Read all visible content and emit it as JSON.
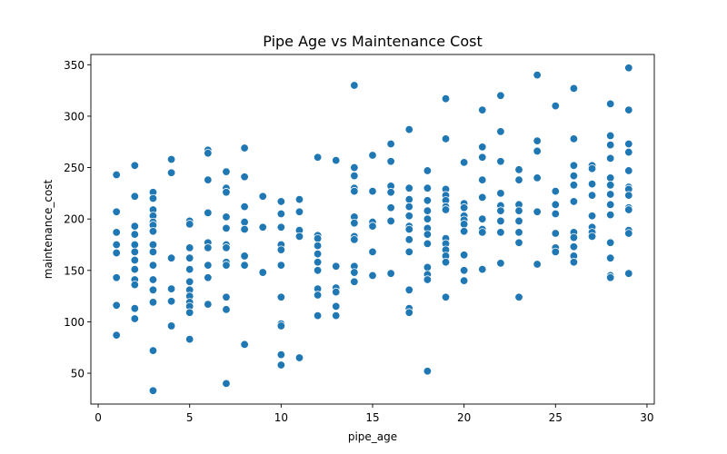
{
  "chart_data": {
    "type": "scatter",
    "title": "Pipe Age vs Maintenance Cost",
    "xlabel": "pipe_age",
    "ylabel": "maintenance_cost",
    "xlim": [
      -0.4,
      30.4
    ],
    "ylim": [
      20,
      360
    ],
    "x_ticks": [
      0,
      5,
      10,
      15,
      20,
      25,
      30
    ],
    "y_ticks": [
      50,
      100,
      150,
      200,
      250,
      300,
      350
    ],
    "grid": false,
    "legend": "none",
    "colors": {
      "point": "#1f77b4",
      "point_edge": "#ffffff"
    },
    "points": [
      [
        1,
        243
      ],
      [
        1,
        207
      ],
      [
        1,
        187
      ],
      [
        1,
        175
      ],
      [
        1,
        167
      ],
      [
        1,
        143
      ],
      [
        1,
        116
      ],
      [
        1,
        87
      ],
      [
        2,
        252
      ],
      [
        2,
        222
      ],
      [
        2,
        193
      ],
      [
        2,
        185
      ],
      [
        2,
        175
      ],
      [
        2,
        168
      ],
      [
        2,
        160
      ],
      [
        2,
        151
      ],
      [
        2,
        141
      ],
      [
        2,
        136
      ],
      [
        2,
        113
      ],
      [
        2,
        103
      ],
      [
        3,
        226
      ],
      [
        3,
        220
      ],
      [
        3,
        209
      ],
      [
        3,
        203
      ],
      [
        3,
        197
      ],
      [
        3,
        194
      ],
      [
        3,
        188
      ],
      [
        3,
        175
      ],
      [
        3,
        168
      ],
      [
        3,
        155
      ],
      [
        3,
        141
      ],
      [
        3,
        131
      ],
      [
        3,
        119
      ],
      [
        3,
        72
      ],
      [
        3,
        33
      ],
      [
        4,
        258
      ],
      [
        4,
        245
      ],
      [
        4,
        162
      ],
      [
        4,
        132
      ],
      [
        4,
        120
      ],
      [
        4,
        96
      ],
      [
        5,
        198
      ],
      [
        5,
        195
      ],
      [
        5,
        172
      ],
      [
        5,
        162
      ],
      [
        5,
        151
      ],
      [
        5,
        139
      ],
      [
        5,
        131
      ],
      [
        5,
        125
      ],
      [
        5,
        119
      ],
      [
        5,
        115
      ],
      [
        5,
        109
      ],
      [
        5,
        83
      ],
      [
        6,
        267
      ],
      [
        6,
        264
      ],
      [
        6,
        238
      ],
      [
        6,
        206
      ],
      [
        6,
        177
      ],
      [
        6,
        172
      ],
      [
        6,
        155
      ],
      [
        6,
        143
      ],
      [
        6,
        117
      ],
      [
        7,
        246
      ],
      [
        7,
        230
      ],
      [
        7,
        226
      ],
      [
        7,
        202
      ],
      [
        7,
        191
      ],
      [
        7,
        175
      ],
      [
        7,
        172
      ],
      [
        7,
        158
      ],
      [
        7,
        155
      ],
      [
        7,
        124
      ],
      [
        7,
        112
      ],
      [
        7,
        40
      ],
      [
        8,
        269
      ],
      [
        8,
        241
      ],
      [
        8,
        212
      ],
      [
        8,
        197
      ],
      [
        8,
        190
      ],
      [
        8,
        164
      ],
      [
        8,
        155
      ],
      [
        8,
        78
      ],
      [
        9,
        222
      ],
      [
        9,
        192
      ],
      [
        9,
        148
      ],
      [
        10,
        217
      ],
      [
        10,
        205
      ],
      [
        10,
        192
      ],
      [
        10,
        175
      ],
      [
        10,
        170
      ],
      [
        10,
        155
      ],
      [
        10,
        124
      ],
      [
        10,
        98
      ],
      [
        10,
        96
      ],
      [
        10,
        68
      ],
      [
        10,
        58
      ],
      [
        11,
        219
      ],
      [
        11,
        207
      ],
      [
        11,
        189
      ],
      [
        11,
        183
      ],
      [
        11,
        65
      ],
      [
        12,
        260
      ],
      [
        12,
        184
      ],
      [
        12,
        181
      ],
      [
        12,
        174
      ],
      [
        12,
        166
      ],
      [
        12,
        158
      ],
      [
        12,
        150
      ],
      [
        12,
        132
      ],
      [
        12,
        126
      ],
      [
        12,
        106
      ],
      [
        13,
        257
      ],
      [
        13,
        154
      ],
      [
        13,
        133
      ],
      [
        13,
        129
      ],
      [
        13,
        115
      ],
      [
        13,
        106
      ],
      [
        14,
        330
      ],
      [
        14,
        250
      ],
      [
        14,
        242
      ],
      [
        14,
        230
      ],
      [
        14,
        227
      ],
      [
        14,
        202
      ],
      [
        14,
        196
      ],
      [
        14,
        183
      ],
      [
        14,
        180
      ],
      [
        14,
        154
      ],
      [
        14,
        148
      ],
      [
        14,
        139
      ],
      [
        15,
        262
      ],
      [
        15,
        227
      ],
      [
        15,
        197
      ],
      [
        15,
        193
      ],
      [
        15,
        168
      ],
      [
        15,
        145
      ],
      [
        16,
        273
      ],
      [
        16,
        256
      ],
      [
        16,
        232
      ],
      [
        16,
        226
      ],
      [
        16,
        211
      ],
      [
        16,
        198
      ],
      [
        16,
        147
      ],
      [
        17,
        287
      ],
      [
        17,
        230
      ],
      [
        17,
        219
      ],
      [
        17,
        212
      ],
      [
        17,
        203
      ],
      [
        17,
        193
      ],
      [
        17,
        190
      ],
      [
        17,
        180
      ],
      [
        17,
        168
      ],
      [
        17,
        131
      ],
      [
        17,
        113
      ],
      [
        17,
        109
      ],
      [
        18,
        247
      ],
      [
        18,
        230
      ],
      [
        18,
        218
      ],
      [
        18,
        208
      ],
      [
        18,
        200
      ],
      [
        18,
        191
      ],
      [
        18,
        185
      ],
      [
        18,
        176
      ],
      [
        18,
        153
      ],
      [
        18,
        146
      ],
      [
        18,
        141
      ],
      [
        18,
        52
      ],
      [
        19,
        317
      ],
      [
        19,
        278
      ],
      [
        19,
        229
      ],
      [
        19,
        223
      ],
      [
        19,
        218
      ],
      [
        19,
        212
      ],
      [
        19,
        209
      ],
      [
        19,
        181
      ],
      [
        19,
        176
      ],
      [
        19,
        170
      ],
      [
        19,
        164
      ],
      [
        19,
        158
      ],
      [
        19,
        124
      ],
      [
        20,
        255
      ],
      [
        20,
        215
      ],
      [
        20,
        211
      ],
      [
        20,
        203
      ],
      [
        20,
        199
      ],
      [
        20,
        195
      ],
      [
        20,
        188
      ],
      [
        20,
        165
      ],
      [
        20,
        150
      ],
      [
        20,
        140
      ],
      [
        21,
        306
      ],
      [
        21,
        270
      ],
      [
        21,
        260
      ],
      [
        21,
        238
      ],
      [
        21,
        221
      ],
      [
        21,
        200
      ],
      [
        21,
        190
      ],
      [
        21,
        187
      ],
      [
        21,
        151
      ],
      [
        22,
        320
      ],
      [
        22,
        285
      ],
      [
        22,
        256
      ],
      [
        22,
        225
      ],
      [
        22,
        213
      ],
      [
        22,
        208
      ],
      [
        22,
        198
      ],
      [
        22,
        187
      ],
      [
        22,
        157
      ],
      [
        23,
        248
      ],
      [
        23,
        238
      ],
      [
        23,
        214
      ],
      [
        23,
        208
      ],
      [
        23,
        198
      ],
      [
        23,
        187
      ],
      [
        23,
        177
      ],
      [
        23,
        124
      ],
      [
        24,
        340
      ],
      [
        24,
        276
      ],
      [
        24,
        266
      ],
      [
        24,
        240
      ],
      [
        24,
        207
      ],
      [
        24,
        156
      ],
      [
        25,
        310
      ],
      [
        25,
        227
      ],
      [
        25,
        214
      ],
      [
        25,
        205
      ],
      [
        25,
        186
      ],
      [
        25,
        172
      ],
      [
        25,
        168
      ],
      [
        26,
        327
      ],
      [
        26,
        278
      ],
      [
        26,
        252
      ],
      [
        26,
        242
      ],
      [
        26,
        233
      ],
      [
        26,
        217
      ],
      [
        26,
        187
      ],
      [
        26,
        182
      ],
      [
        26,
        173
      ],
      [
        26,
        164
      ],
      [
        26,
        158
      ],
      [
        27,
        252
      ],
      [
        27,
        249
      ],
      [
        27,
        234
      ],
      [
        27,
        223
      ],
      [
        27,
        203
      ],
      [
        27,
        192
      ],
      [
        27,
        187
      ],
      [
        27,
        183
      ],
      [
        28,
        312
      ],
      [
        28,
        281
      ],
      [
        28,
        272
      ],
      [
        28,
        259
      ],
      [
        28,
        240
      ],
      [
        28,
        233
      ],
      [
        28,
        224
      ],
      [
        28,
        214
      ],
      [
        28,
        204
      ],
      [
        28,
        177
      ],
      [
        28,
        162
      ],
      [
        28,
        145
      ],
      [
        28,
        143
      ],
      [
        29,
        347
      ],
      [
        29,
        306
      ],
      [
        29,
        273
      ],
      [
        29,
        265
      ],
      [
        29,
        247
      ],
      [
        29,
        231
      ],
      [
        29,
        229
      ],
      [
        29,
        223
      ],
      [
        29,
        211
      ],
      [
        29,
        209
      ],
      [
        29,
        189
      ],
      [
        29,
        186
      ],
      [
        29,
        147
      ]
    ]
  }
}
